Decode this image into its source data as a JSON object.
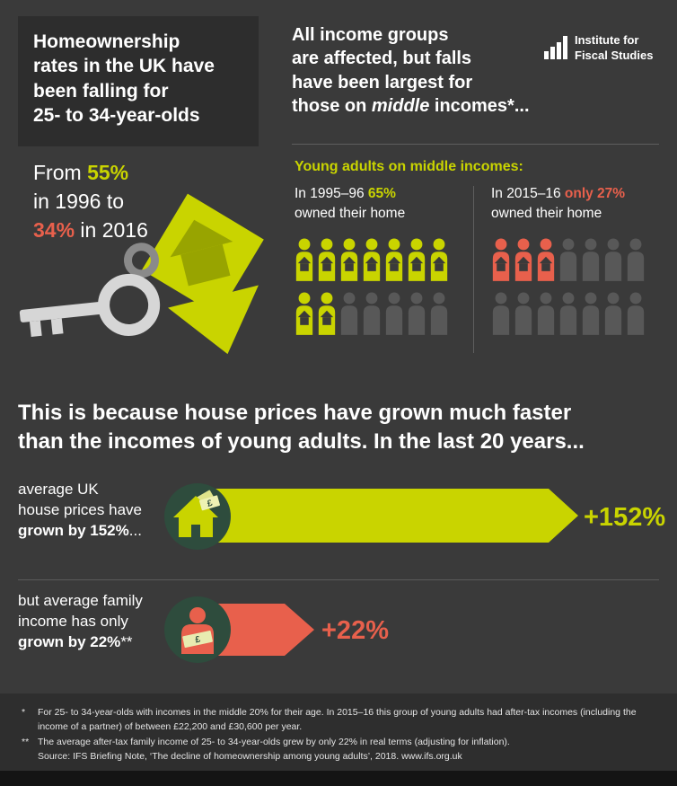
{
  "colors": {
    "bg": "#3a3a3a",
    "panel": "#2d2d2d",
    "chartreuse": "#c9d400",
    "coral": "#e8604c",
    "muted": "#585858",
    "circle_green": "#2e4c3d",
    "key_grey": "#d6d6d6"
  },
  "logo": {
    "name": "Institute for Fiscal Studies",
    "line1": "Institute for",
    "line2": "Fiscal Studies"
  },
  "top_left": {
    "headline": "Homeownership\nrates in the UK have\nbeen falling for\n25- to 34-year-olds",
    "stat": [
      {
        "t": "From "
      },
      {
        "t": "55%",
        "c": "y"
      },
      {
        "br": true
      },
      {
        "t": "in 1996 to"
      },
      {
        "br": true
      },
      {
        "t": "34%",
        "c": "o"
      },
      {
        "t": " in 2016"
      }
    ]
  },
  "top_right": {
    "headline": [
      {
        "t": "All income groups"
      },
      {
        "br": true
      },
      {
        "t": "are affected, but falls"
      },
      {
        "br": true
      },
      {
        "t": "have been largest for"
      },
      {
        "br": true
      },
      {
        "t": "those on "
      },
      {
        "t": "middle",
        "c": "i"
      },
      {
        "t": " incomes*..."
      }
    ],
    "subheading": "Young adults on middle incomes:",
    "col_1995": {
      "text": [
        {
          "t": "In 1995–96 "
        },
        {
          "t": "65%",
          "c": "y"
        },
        {
          "br": true
        },
        {
          "t": "owned their home"
        }
      ]
    },
    "col_2015": {
      "text": [
        {
          "t": "In 2015–16 "
        },
        {
          "t": "only 27%",
          "c": "o"
        },
        {
          "br": true
        },
        {
          "t": "owned their home"
        }
      ]
    },
    "pictogram_1995": {
      "rows": [
        [
          "yh",
          "yh",
          "yh",
          "yh",
          "yh",
          "yh",
          "yh"
        ],
        [
          "yh",
          "yh",
          "g",
          "g",
          "g",
          "g",
          "g"
        ]
      ]
    },
    "pictogram_2015": {
      "rows": [
        [
          "oh",
          "oh",
          "oh",
          "g",
          "g",
          "g",
          "g"
        ],
        [
          "g",
          "g",
          "g",
          "g",
          "g",
          "g",
          "g"
        ]
      ]
    }
  },
  "middle": {
    "headline": "This is because house prices have grown much faster\nthan the incomes of young adults. In the last 20 years..."
  },
  "bars": {
    "house_prices": {
      "label": [
        {
          "t": "average UK"
        },
        {
          "br": true
        },
        {
          "t": "house prices have"
        },
        {
          "br": true
        },
        {
          "t": "grown by 152%",
          "c": "b"
        },
        {
          "t": "..."
        }
      ],
      "value_label": "+152%"
    },
    "family_income": {
      "label": [
        {
          "t": "but average family"
        },
        {
          "br": true
        },
        {
          "t": "income has only"
        },
        {
          "br": true
        },
        {
          "t": "grown by 22%",
          "c": "b"
        },
        {
          "t": "**"
        }
      ],
      "value_label": "+22%"
    }
  },
  "footer": {
    "footnotes": [
      {
        "marker": "*",
        "text": "For 25- to 34-year-olds with incomes in the middle 20% for their age. In 2015–16 this group of young adults had after-tax incomes (including the income of a partner) of between £22,200 and £30,600 per year."
      },
      {
        "marker": "**",
        "text": "The average after-tax family income of 25- to 34-year-olds grew by only 22% in real terms (adjusting for inflation)."
      },
      {
        "marker": "",
        "text": "Source: IFS Briefing Note, ‘The decline of homeownership among young adults’, 2018. www.ifs.org.uk"
      }
    ]
  },
  "chart_data": [
    {
      "type": "table",
      "title": "Homeownership rate of 25- to 34-year-olds in the UK",
      "categories": [
        "1996",
        "2016"
      ],
      "values": [
        55,
        34
      ],
      "unit": "%"
    },
    {
      "type": "pictogram",
      "title": "Young adults on middle incomes owning their home",
      "categories": [
        "1995–96",
        "2015–16"
      ],
      "values": [
        65,
        27
      ],
      "unit": "%",
      "icons_per_group": 14,
      "highlighted": [
        9,
        3
      ]
    },
    {
      "type": "bar",
      "title": "Growth in the last 20 years",
      "categories": [
        "average UK house prices",
        "average family income"
      ],
      "values": [
        152,
        22
      ],
      "unit": "%",
      "colors": [
        "#c9d400",
        "#e8604c"
      ]
    }
  ]
}
